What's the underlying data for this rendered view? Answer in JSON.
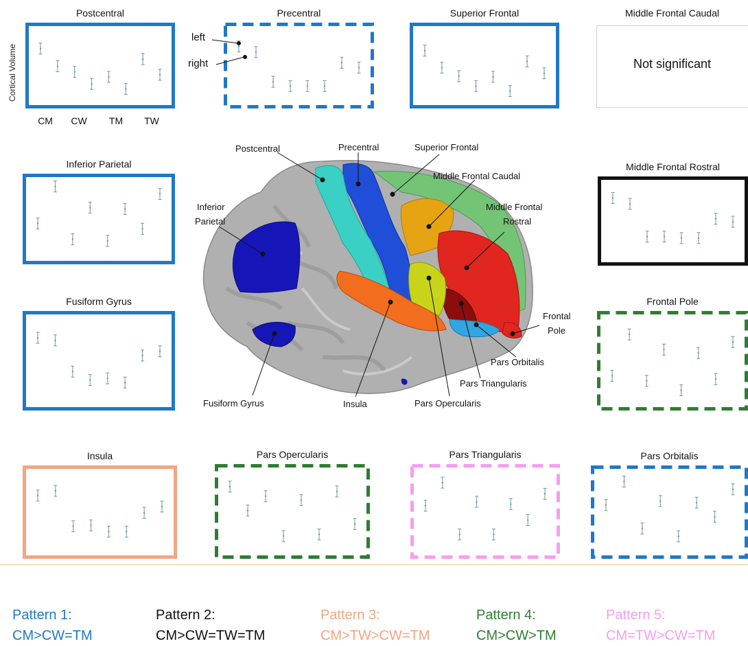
{
  "colors": {
    "pattern1": "#1f78c8",
    "pattern2": "#111111",
    "pattern3": "#f4a582",
    "pattern4": "#2e7d32",
    "pattern5": "#f59ef0",
    "errorbar": "#6b9a98"
  },
  "top_left": {
    "y_axis_label": "Cortical Volume",
    "x_labels": [
      "CM",
      "CW",
      "TM",
      "TW"
    ],
    "left_annotation": "left",
    "right_annotation": "right"
  },
  "panels": [
    {
      "id": "postcentral",
      "title": "Postcentral",
      "pattern": 1,
      "style": "solid",
      "points": [
        0.75,
        0.5,
        0.42,
        0.25,
        0.35,
        0.18,
        0.6,
        0.38
      ]
    },
    {
      "id": "precentral",
      "title": "Precentral",
      "pattern": 1,
      "style": "dashed",
      "points": [
        0.78,
        0.7,
        0.28,
        0.22,
        0.22,
        0.22,
        0.55,
        0.48
      ]
    },
    {
      "id": "superior-frontal",
      "title": "Superior Frontal",
      "pattern": 1,
      "style": "solid",
      "points": [
        0.72,
        0.48,
        0.36,
        0.22,
        0.35,
        0.15,
        0.57,
        0.4
      ]
    },
    {
      "id": "middle-frontal-caudal",
      "title": "Middle Frontal Caudal",
      "pattern": 0,
      "style": "none",
      "note": "Not significant"
    },
    {
      "id": "inferior-parietal",
      "title": "Inferior Parietal",
      "pattern": 1,
      "style": "solid",
      "points": [
        0.45,
        0.94,
        0.24,
        0.66,
        0.22,
        0.64,
        0.38,
        0.84
      ]
    },
    {
      "id": "middle-frontal-rostral",
      "title": "Middle Frontal Rostral",
      "pattern": 2,
      "style": "solid",
      "points": [
        0.82,
        0.74,
        0.3,
        0.3,
        0.28,
        0.28,
        0.54,
        0.5
      ]
    },
    {
      "id": "fusiform-gyrus",
      "title": "Fusiform Gyrus",
      "pattern": 1,
      "style": "solid",
      "points": [
        0.78,
        0.75,
        0.38,
        0.28,
        0.3,
        0.25,
        0.57,
        0.62
      ]
    },
    {
      "id": "frontal-pole",
      "title": "Frontal Pole",
      "pattern": 4,
      "style": "dashed",
      "points": [
        0.33,
        0.82,
        0.27,
        0.64,
        0.16,
        0.6,
        0.29,
        0.73
      ]
    },
    {
      "id": "insula",
      "title": "Insula",
      "pattern": 3,
      "style": "solid",
      "points": [
        0.72,
        0.78,
        0.33,
        0.34,
        0.26,
        0.26,
        0.5,
        0.58
      ]
    },
    {
      "id": "pars-opercularis",
      "title": "Pars Opercularis",
      "pattern": 4,
      "style": "dashed",
      "points": [
        0.82,
        0.52,
        0.7,
        0.2,
        0.65,
        0.22,
        0.76,
        0.35
      ]
    },
    {
      "id": "pars-triangularis",
      "title": "Pars Triangularis",
      "pattern": 5,
      "style": "dashed",
      "points": [
        0.58,
        0.87,
        0.22,
        0.63,
        0.22,
        0.6,
        0.4,
        0.73
      ]
    },
    {
      "id": "pars-orbitalis",
      "title": "Pars Orbitalis",
      "pattern": 1,
      "style": "dashed",
      "points": [
        0.6,
        0.9,
        0.3,
        0.65,
        0.2,
        0.63,
        0.45,
        0.8
      ]
    }
  ],
  "brain_labels": {
    "postcentral": "Postcentral",
    "precentral": "Precentral",
    "superior_frontal": "Superior Frontal",
    "middle_frontal_caudal": "Middle Frontal Caudal",
    "middle_frontal_rostral": "Middle Frontal",
    "middle_frontal_rostral2": "Rostral",
    "inferior_parietal": "Inferior",
    "inferior_parietal2": "Parietal",
    "frontal_pole": "Frontal",
    "frontal_pole2": "Pole",
    "pars_orbitalis": "Pars Orbitalis",
    "pars_triangularis": "Pars Triangularis",
    "pars_opercularis": "Pars Opercularis",
    "insula": "Insula",
    "fusiform_gyrus": "Fusiform Gyrus"
  },
  "legend": [
    {
      "name": "Pattern 1:",
      "rule": "CM>CW=TM",
      "color": "#1f78c8"
    },
    {
      "name": "Pattern 2:",
      "rule": "CM>CW=TW=TM",
      "color": "#111111"
    },
    {
      "name": "Pattern 3:",
      "rule": "CM>TW>CW=TM",
      "color": "#f4a582"
    },
    {
      "name": "Pattern 4:",
      "rule": "CM>CW>TM",
      "color": "#2e7d32"
    },
    {
      "name": "Pattern 5:",
      "rule": "CM=TW>CW=TM",
      "color": "#f59ef0"
    }
  ]
}
